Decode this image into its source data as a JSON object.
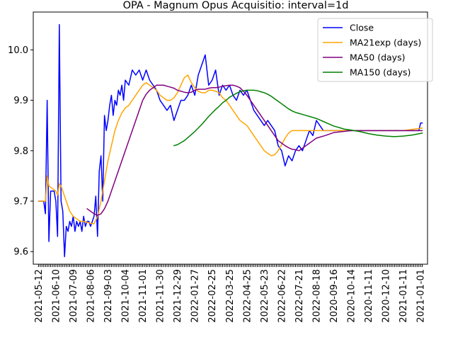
{
  "chart_data": {
    "type": "line",
    "title": "OPA - Magnum Opus Acquisitio: interval=1d",
    "xlabel": "",
    "ylabel": "",
    "ylim": [
      9.575,
      10.075
    ],
    "yticks": [
      9.6,
      9.7,
      9.8,
      9.9,
      10.0
    ],
    "ytick_labels": [
      "9.6",
      "9.7",
      "9.8",
      "9.9",
      "10.0"
    ],
    "xlim": [
      -3,
      224
    ],
    "xtick_labels": [
      "2021-05-12",
      "2021-06-10",
      "2021-07-09",
      "2021-08-06",
      "2021-09-03",
      "2021-10-04",
      "2021-11-01",
      "2021-11-30",
      "2021-12-29",
      "2022-01-27",
      "2022-02-25",
      "2022-03-25",
      "2022-04-25",
      "2022-05-23",
      "2022-06-22",
      "2022-07-21",
      "2022-08-18",
      "2020-09-16",
      "2020-10-14",
      "2020-11-11",
      "2020-12-10",
      "2021-01-11",
      "2021-01-01"
    ],
    "xtick_positions": [
      0,
      10,
      20,
      30,
      40,
      50,
      60,
      70,
      80,
      90,
      100,
      110,
      120,
      130,
      140,
      150,
      160,
      170,
      180,
      190,
      200,
      210,
      220
    ],
    "grid": false,
    "legend_position": "top-right",
    "series": [
      {
        "name": "Close",
        "color": "#0000ff",
        "x": [
          0,
          1,
          2,
          3,
          4,
          5,
          6,
          7,
          8,
          9,
          10,
          11,
          12,
          13,
          14,
          15,
          16,
          17,
          18,
          19,
          20,
          21,
          22,
          23,
          24,
          25,
          26,
          27,
          28,
          29,
          30,
          31,
          32,
          33,
          34,
          35,
          36,
          37,
          38,
          39,
          40,
          41,
          42,
          43,
          44,
          45,
          46,
          47,
          48,
          49,
          50,
          52,
          54,
          56,
          58,
          60,
          62,
          64,
          66,
          68,
          70,
          72,
          74,
          76,
          78,
          80,
          82,
          84,
          86,
          88,
          90,
          92,
          94,
          96,
          98,
          100,
          102,
          104,
          106,
          108,
          110,
          112,
          114,
          116,
          118,
          120,
          122,
          124,
          126,
          128,
          130,
          132,
          134,
          136,
          138,
          140,
          142,
          144,
          146,
          148,
          150,
          152,
          154,
          156,
          158,
          160,
          162,
          164,
          166,
          168,
          170,
          175,
          180,
          185,
          190,
          195,
          200,
          205,
          210,
          215,
          219,
          220,
          221
        ],
        "values": [
          9.7,
          9.7,
          9.7,
          9.7,
          9.675,
          9.9,
          9.62,
          9.72,
          9.72,
          9.72,
          9.7,
          9.63,
          10.05,
          9.7,
          9.68,
          9.59,
          9.65,
          9.64,
          9.66,
          9.65,
          9.67,
          9.64,
          9.66,
          9.65,
          9.66,
          9.64,
          9.67,
          9.65,
          9.66,
          9.66,
          9.65,
          9.66,
          9.67,
          9.71,
          9.63,
          9.76,
          9.79,
          9.7,
          9.87,
          9.84,
          9.86,
          9.89,
          9.91,
          9.87,
          9.9,
          9.89,
          9.92,
          9.91,
          9.93,
          9.9,
          9.94,
          9.93,
          9.96,
          9.95,
          9.96,
          9.94,
          9.96,
          9.94,
          9.93,
          9.92,
          9.9,
          9.89,
          9.88,
          9.89,
          9.86,
          9.88,
          9.9,
          9.9,
          9.91,
          9.93,
          9.91,
          9.95,
          9.97,
          9.99,
          9.93,
          9.94,
          9.96,
          9.91,
          9.93,
          9.92,
          9.93,
          9.91,
          9.9,
          9.92,
          9.91,
          9.92,
          9.9,
          9.88,
          9.87,
          9.86,
          9.85,
          9.86,
          9.85,
          9.84,
          9.81,
          9.8,
          9.77,
          9.79,
          9.78,
          9.8,
          9.81,
          9.8,
          9.82,
          9.84,
          9.83,
          9.86,
          9.85,
          9.84,
          9.84,
          9.84,
          9.84,
          9.84,
          9.84,
          9.84,
          9.84,
          9.84,
          9.84,
          9.84,
          9.84,
          9.84,
          9.84,
          9.855,
          9.855
        ]
      },
      {
        "name": "MA21exp (days)",
        "color": "#ffa500",
        "x": [
          0,
          2,
          4,
          5,
          6,
          8,
          10,
          11,
          12,
          13,
          14,
          16,
          18,
          20,
          22,
          24,
          26,
          28,
          30,
          32,
          34,
          36,
          38,
          40,
          42,
          44,
          46,
          48,
          50,
          52,
          54,
          56,
          58,
          60,
          62,
          64,
          66,
          68,
          70,
          72,
          74,
          76,
          78,
          80,
          82,
          84,
          86,
          88,
          90,
          92,
          94,
          96,
          98,
          100,
          102,
          104,
          106,
          108,
          110,
          112,
          114,
          116,
          118,
          120,
          122,
          124,
          126,
          128,
          130,
          132,
          134,
          136,
          138,
          140,
          142,
          144,
          146,
          148,
          150,
          152,
          154,
          156,
          158,
          160,
          162,
          165,
          170,
          180,
          190,
          200,
          210,
          221
        ],
        "values": [
          9.7,
          9.7,
          9.7,
          9.75,
          9.73,
          9.725,
          9.72,
          9.712,
          9.735,
          9.73,
          9.72,
          9.7,
          9.68,
          9.67,
          9.665,
          9.66,
          9.66,
          9.658,
          9.656,
          9.655,
          9.67,
          9.7,
          9.74,
          9.78,
          9.81,
          9.84,
          9.86,
          9.875,
          9.885,
          9.89,
          9.9,
          9.91,
          9.92,
          9.93,
          9.935,
          9.93,
          9.925,
          9.92,
          9.91,
          9.905,
          9.9,
          9.9,
          9.905,
          9.915,
          9.93,
          9.945,
          9.95,
          9.935,
          9.925,
          9.918,
          9.915,
          9.915,
          9.92,
          9.92,
          9.918,
          9.915,
          9.905,
          9.9,
          9.89,
          9.88,
          9.87,
          9.86,
          9.855,
          9.85,
          9.84,
          9.83,
          9.82,
          9.81,
          9.8,
          9.795,
          9.79,
          9.792,
          9.8,
          9.812,
          9.825,
          9.835,
          9.84,
          9.84,
          9.84,
          9.84,
          9.84,
          9.84,
          9.84,
          9.84,
          9.84,
          9.84,
          9.84,
          9.84,
          9.84,
          9.84,
          9.84,
          9.845
        ]
      },
      {
        "name": "MA50 (days)",
        "color": "#800080",
        "x": [
          28,
          30,
          32,
          34,
          36,
          38,
          40,
          42,
          44,
          46,
          48,
          50,
          52,
          54,
          56,
          58,
          60,
          62,
          64,
          66,
          68,
          70,
          72,
          74,
          76,
          78,
          80,
          82,
          84,
          86,
          88,
          90,
          92,
          94,
          96,
          98,
          100,
          102,
          104,
          106,
          108,
          110,
          112,
          114,
          116,
          118,
          120,
          122,
          124,
          126,
          128,
          130,
          132,
          134,
          136,
          138,
          140,
          142,
          144,
          146,
          148,
          150,
          152,
          154,
          156,
          158,
          160,
          165,
          170,
          180,
          190,
          200,
          210,
          221
        ],
        "values": [
          9.685,
          9.68,
          9.675,
          9.672,
          9.675,
          9.685,
          9.7,
          9.72,
          9.74,
          9.76,
          9.78,
          9.8,
          9.82,
          9.84,
          9.86,
          9.88,
          9.9,
          9.912,
          9.92,
          9.925,
          9.93,
          9.93,
          9.93,
          9.928,
          9.926,
          9.924,
          9.92,
          9.918,
          9.916,
          9.915,
          9.916,
          9.92,
          9.922,
          9.922,
          9.922,
          9.924,
          9.925,
          9.925,
          9.926,
          9.928,
          9.929,
          9.93,
          9.93,
          9.928,
          9.925,
          9.918,
          9.91,
          9.9,
          9.89,
          9.88,
          9.87,
          9.86,
          9.85,
          9.84,
          9.83,
          9.82,
          9.815,
          9.81,
          9.806,
          9.803,
          9.802,
          9.8,
          9.805,
          9.81,
          9.815,
          9.82,
          9.825,
          9.83,
          9.836,
          9.84,
          9.84,
          9.84,
          9.84,
          9.84
        ]
      },
      {
        "name": "MA150 (days)",
        "color": "#008000",
        "x": [
          78,
          80,
          82,
          84,
          86,
          88,
          90,
          92,
          94,
          96,
          98,
          100,
          102,
          104,
          106,
          108,
          110,
          112,
          114,
          116,
          118,
          120,
          122,
          124,
          126,
          128,
          130,
          132,
          134,
          136,
          138,
          140,
          142,
          144,
          146,
          148,
          150,
          152,
          154,
          156,
          158,
          160,
          162,
          164,
          166,
          168,
          170,
          172,
          174,
          176,
          178,
          180,
          185,
          190,
          195,
          200,
          205,
          210,
          215,
          221
        ],
        "values": [
          9.81,
          9.812,
          9.816,
          9.82,
          9.826,
          9.832,
          9.838,
          9.845,
          9.852,
          9.86,
          9.868,
          9.875,
          9.882,
          9.888,
          9.895,
          9.9,
          9.906,
          9.91,
          9.914,
          9.917,
          9.919,
          9.92,
          9.92,
          9.92,
          9.919,
          9.917,
          9.915,
          9.912,
          9.908,
          9.903,
          9.898,
          9.893,
          9.888,
          9.883,
          9.879,
          9.876,
          9.874,
          9.872,
          9.87,
          9.868,
          9.866,
          9.864,
          9.861,
          9.858,
          9.855,
          9.852,
          9.849,
          9.847,
          9.845,
          9.843,
          9.842,
          9.841,
          9.838,
          9.834,
          9.831,
          9.829,
          9.828,
          9.829,
          9.831,
          9.835
        ]
      }
    ]
  }
}
